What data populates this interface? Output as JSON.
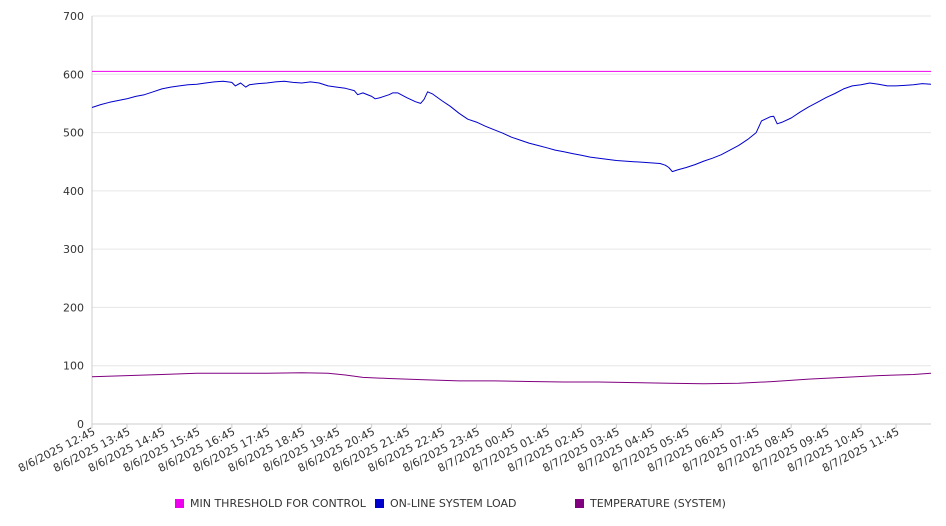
{
  "chart_data": {
    "type": "line",
    "title": "",
    "xlabel": "",
    "ylabel": "",
    "ylim": [
      0,
      700
    ],
    "yticks": [
      0,
      100,
      200,
      300,
      400,
      500,
      600,
      700
    ],
    "grid": true,
    "legend_position": "bottom",
    "x_tick_labels": [
      "8/6/2025 12:45",
      "8/6/2025 13:45",
      "8/6/2025 14:45",
      "8/6/2025 15:45",
      "8/6/2025 16:45",
      "8/6/2025 17:45",
      "8/6/2025 18:45",
      "8/6/2025 19:45",
      "8/6/2025 20:45",
      "8/6/2025 21:45",
      "8/6/2025 22:45",
      "8/6/2025 23:45",
      "8/7/2025 00:45",
      "8/7/2025 01:45",
      "8/7/2025 02:45",
      "8/7/2025 03:45",
      "8/7/2025 04:45",
      "8/7/2025 05:45",
      "8/7/2025 06:45",
      "8/7/2025 07:45",
      "8/7/2025 08:45",
      "8/7/2025 09:45",
      "8/7/2025 10:45",
      "8/7/2025 11:45"
    ],
    "x_range_hours": [
      0,
      24
    ],
    "series": [
      {
        "name": "MIN THRESHOLD FOR CONTROL",
        "color": "#ee00ee",
        "points": [
          [
            0,
            605
          ],
          [
            24,
            605
          ]
        ]
      },
      {
        "name": "ON-LINE SYSTEM LOAD",
        "color": "#0000cc",
        "points": [
          [
            0,
            543
          ],
          [
            0.25,
            548
          ],
          [
            0.5,
            552
          ],
          [
            0.75,
            555
          ],
          [
            1.0,
            558
          ],
          [
            1.25,
            562
          ],
          [
            1.5,
            565
          ],
          [
            1.75,
            570
          ],
          [
            2.0,
            575
          ],
          [
            2.25,
            578
          ],
          [
            2.5,
            580
          ],
          [
            2.75,
            582
          ],
          [
            3.0,
            583
          ],
          [
            3.25,
            585
          ],
          [
            3.5,
            587
          ],
          [
            3.75,
            588
          ],
          [
            4.0,
            586
          ],
          [
            4.1,
            580
          ],
          [
            4.25,
            585
          ],
          [
            4.4,
            578
          ],
          [
            4.5,
            582
          ],
          [
            4.75,
            584
          ],
          [
            5.0,
            585
          ],
          [
            5.25,
            587
          ],
          [
            5.5,
            588
          ],
          [
            5.75,
            586
          ],
          [
            6.0,
            585
          ],
          [
            6.25,
            587
          ],
          [
            6.5,
            585
          ],
          [
            6.75,
            580
          ],
          [
            7.0,
            578
          ],
          [
            7.25,
            576
          ],
          [
            7.5,
            572
          ],
          [
            7.6,
            565
          ],
          [
            7.75,
            568
          ],
          [
            8.0,
            562
          ],
          [
            8.1,
            558
          ],
          [
            8.25,
            560
          ],
          [
            8.5,
            565
          ],
          [
            8.6,
            568
          ],
          [
            8.75,
            568
          ],
          [
            9.0,
            560
          ],
          [
            9.25,
            553
          ],
          [
            9.4,
            550
          ],
          [
            9.5,
            557
          ],
          [
            9.6,
            570
          ],
          [
            9.75,
            566
          ],
          [
            10.0,
            555
          ],
          [
            10.25,
            545
          ],
          [
            10.5,
            533
          ],
          [
            10.75,
            523
          ],
          [
            11.0,
            518
          ],
          [
            11.25,
            511
          ],
          [
            11.5,
            505
          ],
          [
            11.75,
            499
          ],
          [
            12.0,
            492
          ],
          [
            12.25,
            487
          ],
          [
            12.5,
            482
          ],
          [
            12.75,
            478
          ],
          [
            13.0,
            474
          ],
          [
            13.25,
            470
          ],
          [
            13.5,
            467
          ],
          [
            13.75,
            464
          ],
          [
            14.0,
            461
          ],
          [
            14.25,
            458
          ],
          [
            14.5,
            456
          ],
          [
            14.75,
            454
          ],
          [
            15.0,
            452
          ],
          [
            15.25,
            451
          ],
          [
            15.5,
            450
          ],
          [
            15.75,
            449
          ],
          [
            16.0,
            448
          ],
          [
            16.25,
            447
          ],
          [
            16.4,
            444
          ],
          [
            16.5,
            440
          ],
          [
            16.6,
            433
          ],
          [
            16.75,
            436
          ],
          [
            17.0,
            440
          ],
          [
            17.25,
            445
          ],
          [
            17.5,
            451
          ],
          [
            17.75,
            456
          ],
          [
            18.0,
            462
          ],
          [
            18.25,
            470
          ],
          [
            18.5,
            478
          ],
          [
            18.75,
            488
          ],
          [
            19.0,
            500
          ],
          [
            19.15,
            520
          ],
          [
            19.4,
            527
          ],
          [
            19.5,
            528
          ],
          [
            19.6,
            515
          ],
          [
            19.75,
            518
          ],
          [
            20.0,
            525
          ],
          [
            20.25,
            535
          ],
          [
            20.5,
            544
          ],
          [
            20.75,
            552
          ],
          [
            21.0,
            560
          ],
          [
            21.25,
            567
          ],
          [
            21.5,
            575
          ],
          [
            21.75,
            580
          ],
          [
            22.0,
            582
          ],
          [
            22.25,
            585
          ],
          [
            22.5,
            583
          ],
          [
            22.75,
            580
          ],
          [
            23.0,
            580
          ],
          [
            23.25,
            581
          ],
          [
            23.5,
            582
          ],
          [
            23.75,
            584
          ],
          [
            24.0,
            583
          ]
        ]
      },
      {
        "name": "TEMPERATURE (SYSTEM)",
        "color": "#800080",
        "points": [
          [
            0,
            81
          ],
          [
            1,
            83
          ],
          [
            2,
            85
          ],
          [
            3,
            87
          ],
          [
            4,
            87
          ],
          [
            5,
            87
          ],
          [
            6,
            88
          ],
          [
            6.75,
            87
          ],
          [
            7.25,
            84
          ],
          [
            7.75,
            80
          ],
          [
            8.5,
            78
          ],
          [
            9.5,
            76
          ],
          [
            10.5,
            74
          ],
          [
            11.5,
            74
          ],
          [
            12.5,
            73
          ],
          [
            13.5,
            72
          ],
          [
            14.5,
            72
          ],
          [
            15.5,
            71
          ],
          [
            16.5,
            70
          ],
          [
            17.5,
            69
          ],
          [
            18.5,
            70
          ],
          [
            19.5,
            73
          ],
          [
            20.5,
            77
          ],
          [
            21.5,
            80
          ],
          [
            22.5,
            83
          ],
          [
            23.5,
            85
          ],
          [
            24,
            87
          ]
        ]
      }
    ]
  }
}
